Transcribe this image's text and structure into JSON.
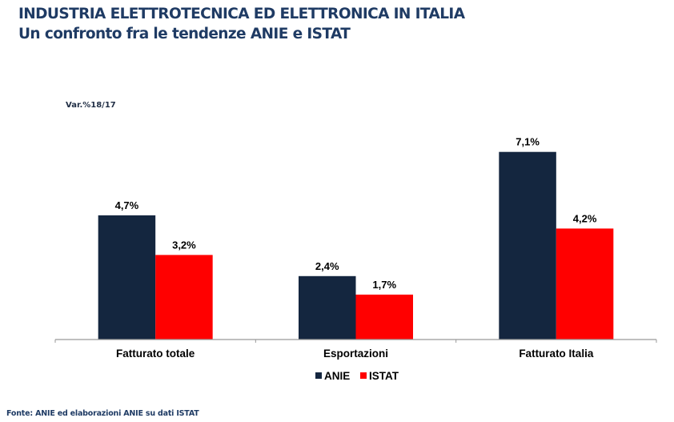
{
  "header": {
    "title": "INDUSTRIA ELETTROTECNICA ED ELETTRONICA IN ITALIA",
    "subtitle": "Un confronto fra le tendenze ANIE e ISTAT"
  },
  "source": "Fonte: ANIE ed elaborazioni ANIE su dati ISTAT",
  "colors": {
    "title": "#1f3b64",
    "ANIE": "#14263f",
    "ISTAT": "#ff0000",
    "axis": "#999999"
  },
  "chart_data": {
    "type": "bar",
    "title": "",
    "unit_label": "Var.%18/17",
    "xlabel": "",
    "ylabel": "Var.%18/17",
    "ylim": [
      0,
      7.1
    ],
    "grid": false,
    "legend_position": "bottom",
    "categories": [
      "Fatturato totale",
      "Esportazioni",
      "Fatturato Italia"
    ],
    "series": [
      {
        "name": "ANIE",
        "values": [
          4.7,
          2.4,
          7.1
        ],
        "labels": [
          "4,7%",
          "2,4%",
          "7,1%"
        ]
      },
      {
        "name": "ISTAT",
        "values": [
          3.2,
          1.7,
          4.2
        ],
        "labels": [
          "3,2%",
          "1,7%",
          "4,2%"
        ]
      }
    ]
  }
}
